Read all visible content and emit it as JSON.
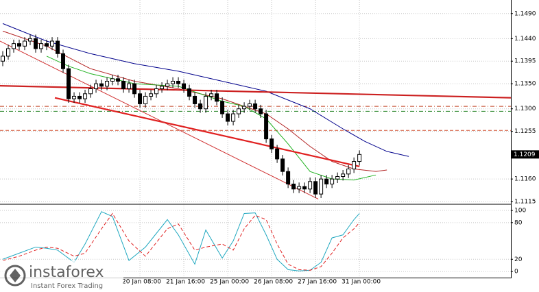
{
  "chart_data": [
    {
      "type": "candlestick",
      "xlim": [
        -0.5,
        92.6
      ],
      "ylim": [
        1.1111,
        1.1517
      ],
      "yticks": [
        {
          "value": 1.149,
          "label": "1.1490"
        },
        {
          "value": 1.144,
          "label": "1.1440"
        },
        1.1395,
        {
          "value": 1.135,
          "label": "1.1350"
        },
        {
          "value": 1.13,
          "label": "1.1300"
        },
        1.1255,
        {
          "value": 1.116,
          "label": "1.1160"
        },
        1.1115
      ],
      "grid": true,
      "up_color": "#ffffff",
      "down_color": "#000000",
      "categories": [
        null,
        null,
        null,
        null,
        null,
        null,
        null,
        null,
        null,
        null,
        null,
        null,
        null,
        null,
        null,
        null,
        null,
        null,
        null,
        null,
        null,
        null,
        null,
        null,
        null,
        "20 Jan 08:00",
        null,
        null,
        null,
        null,
        null,
        null,
        null,
        "21 Jan 16:00",
        null,
        null,
        null,
        null,
        null,
        null,
        null,
        "25 Jan 00:00",
        null,
        null,
        null,
        null,
        null,
        null,
        null,
        "26 Jan 08:00",
        null,
        null,
        null,
        null,
        null,
        null,
        null,
        "27 Jan 16:00",
        null,
        null,
        null,
        null,
        null,
        null,
        null,
        "31 Jan 00:00"
      ],
      "open": [
        1.1395,
        1.1405,
        1.142,
        1.143,
        1.1425,
        1.1435,
        1.144,
        1.142,
        1.143,
        1.1425,
        1.1435,
        1.141,
        1.138,
        1.132,
        1.1325,
        1.132,
        1.133,
        1.134,
        1.135,
        1.1345,
        1.1355,
        1.136,
        1.1355,
        1.134,
        1.135,
        1.133,
        1.131,
        1.1325,
        1.133,
        1.134,
        1.1345,
        1.135,
        1.1355,
        1.135,
        1.134,
        1.1325,
        1.131,
        1.13,
        1.1325,
        1.133,
        1.1315,
        1.129,
        1.1275,
        1.129,
        1.13,
        1.1305,
        1.131,
        1.13,
        1.129,
        1.124,
        1.122,
        1.12,
        1.1175,
        1.115,
        1.114,
        1.1145,
        1.114,
        1.1155,
        1.113,
        1.116,
        1.115,
        1.116,
        1.1165,
        1.117,
        1.118,
        1.1195
      ],
      "high": [
        1.1415,
        1.1428,
        1.1438,
        1.1438,
        1.1443,
        1.1448,
        1.1448,
        1.1438,
        1.1438,
        1.1443,
        1.1443,
        1.1418,
        1.1388,
        1.1333,
        1.1333,
        1.1338,
        1.1348,
        1.1358,
        1.1358,
        1.1363,
        1.1368,
        1.1368,
        1.1363,
        1.1358,
        1.1358,
        1.1338,
        1.1333,
        1.1338,
        1.1348,
        1.1353,
        1.1358,
        1.1363,
        1.1363,
        1.1358,
        1.1348,
        1.1333,
        1.1318,
        1.1333,
        1.1338,
        1.1338,
        1.1323,
        1.1298,
        1.1298,
        1.1308,
        1.1313,
        1.1318,
        1.1318,
        1.1308,
        1.1298,
        1.1248,
        1.1228,
        1.1208,
        1.1183,
        1.1158,
        1.1153,
        1.1153,
        1.1163,
        1.1163,
        1.1168,
        1.1168,
        1.1168,
        1.1173,
        1.1178,
        1.1188,
        1.1203,
        1.1217
      ],
      "low": [
        1.1385,
        1.1398,
        1.1412,
        1.1417,
        1.1417,
        1.1427,
        1.1412,
        1.1412,
        1.1417,
        1.1417,
        1.1402,
        1.1372,
        1.1312,
        1.1312,
        1.1312,
        1.1312,
        1.1322,
        1.1332,
        1.1337,
        1.1337,
        1.1347,
        1.1347,
        1.1332,
        1.1332,
        1.1322,
        1.1302,
        1.1302,
        1.1317,
        1.1322,
        1.1332,
        1.1337,
        1.1342,
        1.1342,
        1.1332,
        1.1317,
        1.1302,
        1.1292,
        1.1292,
        1.1317,
        1.1307,
        1.1282,
        1.1267,
        1.1267,
        1.1282,
        1.1292,
        1.1297,
        1.1292,
        1.1282,
        1.1232,
        1.1212,
        1.1192,
        1.1167,
        1.1142,
        1.1132,
        1.1132,
        1.1132,
        1.1132,
        1.1122,
        1.1122,
        1.1142,
        1.1142,
        1.1152,
        1.1157,
        1.1162,
        1.1172,
        1.1187
      ],
      "close": [
        1.1405,
        1.142,
        1.143,
        1.1425,
        1.1435,
        1.144,
        1.142,
        1.143,
        1.1425,
        1.1435,
        1.141,
        1.138,
        1.132,
        1.1325,
        1.132,
        1.133,
        1.134,
        1.135,
        1.1345,
        1.1355,
        1.136,
        1.1355,
        1.134,
        1.135,
        1.133,
        1.131,
        1.1325,
        1.133,
        1.134,
        1.1345,
        1.135,
        1.1355,
        1.135,
        1.134,
        1.1325,
        1.131,
        1.13,
        1.1325,
        1.133,
        1.1315,
        1.129,
        1.1275,
        1.129,
        1.13,
        1.1305,
        1.131,
        1.13,
        1.129,
        1.124,
        1.122,
        1.12,
        1.1175,
        1.115,
        1.114,
        1.1145,
        1.114,
        1.1155,
        1.113,
        1.116,
        1.115,
        1.116,
        1.1165,
        1.117,
        1.118,
        1.1195,
        1.1209
      ],
      "current_price": 1.1209,
      "series": [
        {
          "color": "#00008b",
          "x": [
            0,
            8,
            16,
            24,
            32,
            40,
            48,
            56,
            62,
            66,
            70,
            74
          ],
          "values": [
            1.147,
            1.1435,
            1.141,
            1.139,
            1.1375,
            1.1355,
            1.1335,
            1.13,
            1.126,
            1.1235,
            1.1215,
            1.1205
          ]
        },
        {
          "color": "#b22222",
          "x": [
            0,
            8,
            16,
            24,
            32,
            40,
            48,
            52,
            56,
            60,
            64,
            68,
            70
          ],
          "values": [
            1.1455,
            1.1425,
            1.138,
            1.1355,
            1.134,
            1.132,
            1.129,
            1.126,
            1.1225,
            1.1195,
            1.118,
            1.1175,
            1.1178
          ]
        },
        {
          "color": "#22b222",
          "x": [
            8,
            12,
            16,
            24,
            32,
            40,
            44,
            48,
            52,
            56,
            60,
            64,
            68
          ],
          "values": [
            1.1405,
            1.1385,
            1.137,
            1.135,
            1.1345,
            1.1315,
            1.1305,
            1.128,
            1.123,
            1.1175,
            1.116,
            1.1158,
            1.1168
          ]
        }
      ],
      "trend_lines": [
        {
          "color": "#e02020",
          "style": "bold",
          "x": [
            9.5,
            65
          ],
          "values": [
            1.1322,
            1.1185
          ]
        },
        {
          "color": "#cc2020",
          "style": "bold",
          "x": [
            -0.5,
            92.6
          ],
          "values": [
            1.1346,
            1.1322
          ]
        },
        {
          "color": "#d03030",
          "style": "thin",
          "x": [
            -0.5,
            57.5
          ],
          "values": [
            1.1435,
            1.112
          ]
        }
      ],
      "levels": [
        {
          "value": 1.1305,
          "color": "#c04020",
          "style": "dash-dot"
        },
        {
          "value": 1.1295,
          "color": "#208020",
          "style": "dash-dot"
        },
        {
          "value": 1.1257,
          "color": "#d05030",
          "style": "dash"
        }
      ]
    },
    {
      "type": "line",
      "xlim": [
        -0.5,
        92.6
      ],
      "ylim": [
        -10,
        109
      ],
      "yticks": [
        0,
        20,
        80,
        100
      ],
      "grid": true,
      "series": [
        {
          "color": "#20a8c0",
          "style": "solid",
          "x": [
            0,
            3,
            6,
            8,
            10,
            13,
            15,
            18,
            20,
            23,
            26,
            30,
            32,
            35,
            37,
            40,
            42,
            44,
            46,
            48,
            50,
            52,
            54,
            56,
            58,
            60,
            62,
            64,
            65
          ],
          "values": [
            20,
            30,
            40,
            38,
            35,
            15,
            45,
            98,
            90,
            18,
            40,
            85,
            60,
            12,
            68,
            22,
            50,
            95,
            96,
            60,
            20,
            3,
            1,
            2,
            15,
            55,
            60,
            85,
            95
          ]
        },
        {
          "color": "#e02020",
          "style": "dash",
          "x": [
            0,
            3,
            6,
            8,
            10,
            13,
            15,
            18,
            20,
            23,
            26,
            30,
            32,
            35,
            37,
            40,
            42,
            44,
            46,
            48,
            50,
            52,
            54,
            56,
            58,
            60,
            62,
            64,
            65
          ],
          "values": [
            18,
            25,
            35,
            40,
            38,
            25,
            30,
            70,
            95,
            50,
            25,
            70,
            78,
            35,
            40,
            45,
            35,
            70,
            92,
            85,
            45,
            12,
            3,
            2,
            8,
            30,
            55,
            70,
            80
          ]
        }
      ]
    }
  ],
  "watermark": {
    "brand": "instaforex",
    "tagline": "Instant Forex Trading"
  }
}
